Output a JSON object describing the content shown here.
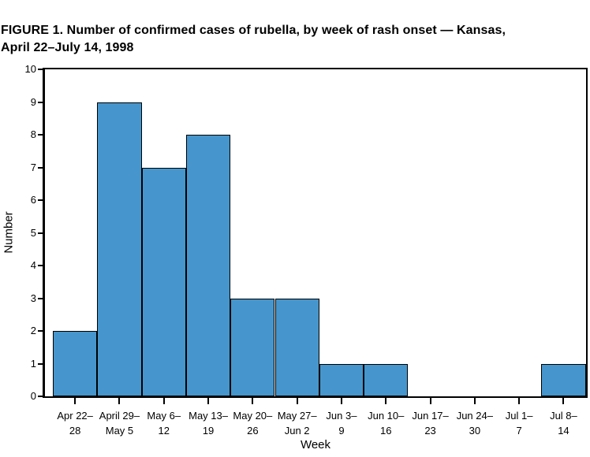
{
  "title": {
    "line1": "FIGURE 1. Number of confirmed cases of rubella, by week of rash onset — Kansas,",
    "line2": "April 22–July 14, 1998"
  },
  "chart_data": {
    "type": "bar",
    "title": "FIGURE 1. Number of confirmed cases of rubella, by week of rash onset — Kansas, April 22–July 14, 1998",
    "categories": [
      {
        "line1": "Apr 22–",
        "line2": "28"
      },
      {
        "line1": "April 29–",
        "line2": "May 5"
      },
      {
        "line1": "May 6–",
        "line2": "12"
      },
      {
        "line1": "May 13–",
        "line2": "19"
      },
      {
        "line1": "May 20–",
        "line2": "26"
      },
      {
        "line1": "May 27–",
        "line2": "Jun 2"
      },
      {
        "line1": "Jun 3–",
        "line2": "9"
      },
      {
        "line1": "Jun 10–",
        "line2": "16"
      },
      {
        "line1": "Jun 17–",
        "line2": "23"
      },
      {
        "line1": "Jun 24–",
        "line2": "30"
      },
      {
        "line1": "Jul 1–",
        "line2": "7"
      },
      {
        "line1": "Jul 8–",
        "line2": "14"
      }
    ],
    "values": [
      2,
      9,
      7,
      8,
      3,
      3,
      1,
      1,
      0,
      0,
      0,
      1
    ],
    "xlabel": "Week",
    "ylabel": "Number",
    "ylim": [
      0,
      10
    ],
    "yticks": [
      0,
      1,
      2,
      3,
      4,
      5,
      6,
      7,
      8,
      9,
      10
    ],
    "bar_color": "#4696cd",
    "bar_border_color": "#000000",
    "axis_color": "#000000",
    "grid": false,
    "legend": null
  }
}
